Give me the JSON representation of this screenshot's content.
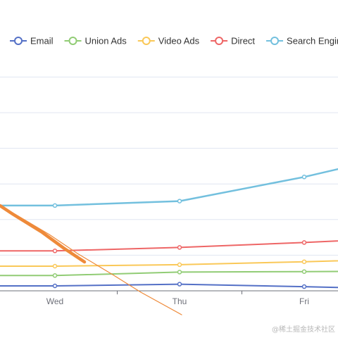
{
  "chart_data": {
    "type": "line",
    "title": "",
    "xlabel": "",
    "ylabel": "",
    "categories": [
      "Wed",
      "Thu",
      "Fri"
    ],
    "grid": true,
    "legend_position": "top",
    "series": [
      {
        "name": "Email",
        "color": "#5470c6",
        "points": [
          {
            "x": "Wed",
            "y": 10
          },
          {
            "x": "Thu",
            "y": 13.5
          },
          {
            "x": "Fri",
            "y": 8.5
          }
        ]
      },
      {
        "name": "Union Ads",
        "color": "#91cc75",
        "points": [
          {
            "x": "Wed",
            "y": 31
          },
          {
            "x": "Thu",
            "y": 38
          },
          {
            "x": "Fri",
            "y": 39
          }
        ]
      },
      {
        "name": "Video Ads",
        "color": "#fac858",
        "points": [
          {
            "x": "Wed",
            "y": 50
          },
          {
            "x": "Thu",
            "y": 53
          },
          {
            "x": "Fri",
            "y": 59
          }
        ]
      },
      {
        "name": "Direct",
        "color": "#ee6666",
        "points": [
          {
            "x": "Wed",
            "y": 81
          },
          {
            "x": "Thu",
            "y": 88
          },
          {
            "x": "Fri",
            "y": 98
          }
        ]
      },
      {
        "name": "Search Engine",
        "color": "#73c0de",
        "points": [
          {
            "x": "Wed",
            "y": 173
          },
          {
            "x": "Thu",
            "y": 182
          },
          {
            "x": "Fri",
            "y": 231
          }
        ]
      }
    ],
    "annotation": {
      "type": "arrow-stroke",
      "color": "#ee8a3a"
    }
  },
  "watermark": "@稀土掘金技术社区"
}
